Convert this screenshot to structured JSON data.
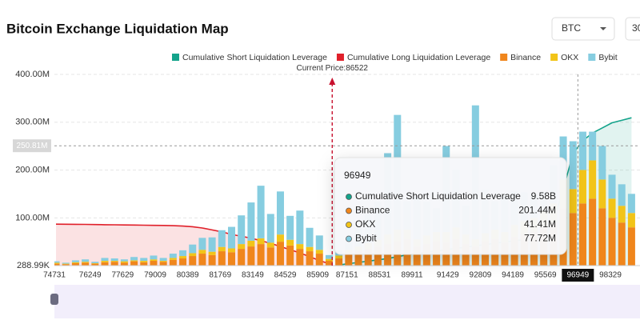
{
  "controls": {
    "symbol": "BTC",
    "period": "30"
  },
  "chart_data": {
    "type": "bar",
    "title": "Bitcoin Exchange Liquidation Map",
    "x": [
      74800,
      75214,
      75628,
      76042,
      76456,
      76870,
      77284,
      77698,
      78112,
      78526,
      78940,
      79354,
      79768,
      80182,
      80596,
      81010,
      81424,
      81838,
      82252,
      82666,
      83080,
      83494,
      83908,
      84322,
      84736,
      85150,
      85564,
      85978,
      86392,
      86806,
      87220,
      87634,
      88048,
      88462,
      88876,
      89290,
      89704,
      90118,
      90532,
      90946,
      91360,
      91774,
      92188,
      92602,
      93016,
      93430,
      93844,
      94258,
      94672,
      95086,
      95500,
      95914,
      96328,
      96742,
      97156,
      97570,
      97984,
      98398,
      98812,
      99226
    ],
    "xlim": [
      74731,
      99600
    ],
    "xticks": [
      74731,
      76249,
      77629,
      79009,
      80389,
      81769,
      83149,
      84529,
      85909,
      87151,
      88531,
      89911,
      91429,
      92809,
      94189,
      95569,
      96949,
      98329
    ],
    "ylim": [
      0.28899,
      400
    ],
    "yticks": [
      {
        "value": 0.28899,
        "label": "288.99K"
      },
      {
        "value": 100,
        "label": "100.00M"
      },
      {
        "value": 200,
        "label": "200.00M"
      },
      {
        "value": 300,
        "label": "300.00M"
      },
      {
        "value": 400,
        "label": "400.00M"
      }
    ],
    "y2lim": [
      0,
      15000
    ],
    "grid": true,
    "series": [
      {
        "name": "Cumulative Short Liquidation Leverage",
        "color": "#14a38b",
        "kind": "area",
        "axis": "y2",
        "values": [
          null,
          null,
          null,
          null,
          null,
          null,
          null,
          null,
          null,
          null,
          null,
          null,
          null,
          null,
          null,
          null,
          null,
          null,
          null,
          null,
          null,
          null,
          null,
          null,
          null,
          null,
          null,
          null,
          null,
          50,
          150,
          250,
          350,
          450,
          550,
          700,
          850,
          950,
          1050,
          1150,
          1250,
          1350,
          1450,
          1550,
          1650,
          1750,
          1850,
          1950,
          2050,
          2150,
          2300,
          3500,
          6000,
          8800,
          9800,
          10400,
          10800,
          11200,
          11400,
          11600
        ]
      },
      {
        "name": "Cumulative Long Liquidation Leverage",
        "color": "#e0202a",
        "kind": "area",
        "axis": "y2",
        "values": [
          3250,
          3245,
          3240,
          3230,
          3220,
          3210,
          3200,
          3190,
          3180,
          3170,
          3160,
          3150,
          3130,
          3100,
          3050,
          2950,
          2800,
          2650,
          2450,
          2300,
          2150,
          1950,
          1750,
          1500,
          1250,
          1000,
          700,
          400,
          150,
          null,
          null,
          null,
          null,
          null,
          null,
          null,
          null,
          null,
          null,
          null,
          null,
          null,
          null,
          null,
          null,
          null,
          null,
          null,
          null,
          null,
          null,
          null,
          null,
          null,
          null,
          null,
          null,
          null,
          null,
          null
        ]
      },
      {
        "name": "Binance",
        "color": "#f0861c",
        "kind": "bar",
        "values": [
          4,
          3,
          5,
          6,
          4,
          7,
          8,
          6,
          9,
          7,
          10,
          8,
          12,
          15,
          20,
          25,
          22,
          30,
          28,
          35,
          40,
          45,
          38,
          50,
          42,
          35,
          30,
          25,
          10,
          15,
          25,
          30,
          35,
          40,
          45,
          50,
          55,
          40,
          45,
          50,
          48,
          55,
          45,
          40,
          50,
          55,
          48,
          60,
          65,
          70,
          80,
          90,
          120,
          110,
          130,
          140,
          120,
          100,
          90,
          80
        ]
      },
      {
        "name": "OKX",
        "color": "#f2c418",
        "kind": "bar",
        "values": [
          2,
          1,
          2,
          2,
          1,
          3,
          2,
          3,
          2,
          3,
          3,
          2,
          4,
          5,
          6,
          8,
          7,
          9,
          8,
          10,
          12,
          12,
          10,
          15,
          12,
          10,
          9,
          8,
          4,
          6,
          8,
          10,
          12,
          14,
          20,
          25,
          20,
          15,
          18,
          20,
          22,
          25,
          20,
          15,
          18,
          20,
          22,
          25,
          28,
          30,
          35,
          40,
          60,
          50,
          70,
          80,
          60,
          40,
          35,
          30
        ]
      },
      {
        "name": "Bybit",
        "color": "#86cde0",
        "kind": "bar",
        "values": [
          3,
          2,
          4,
          5,
          3,
          6,
          5,
          4,
          7,
          6,
          8,
          6,
          9,
          12,
          18,
          25,
          30,
          35,
          45,
          60,
          80,
          110,
          60,
          90,
          50,
          70,
          40,
          30,
          8,
          10,
          20,
          40,
          60,
          80,
          170,
          240,
          60,
          90,
          70,
          50,
          180,
          120,
          60,
          280,
          90,
          60,
          80,
          70,
          60,
          50,
          40,
          80,
          90,
          100,
          80,
          60,
          70,
          50,
          45,
          40
        ]
      }
    ],
    "current_price": {
      "label": "Current Price:",
      "value": 86522
    },
    "crosshair": {
      "x": 96949,
      "y": {
        "value": 250.81,
        "label": "250.81M"
      }
    },
    "tooltip": {
      "x": 96949,
      "rows": [
        {
          "value": 9580,
          "label": "9.58B"
        },
        {
          "value": 201.44,
          "label": "201.44M"
        },
        {
          "value": 41.41,
          "label": "41.41M"
        },
        {
          "value": 77.72,
          "label": "77.72M"
        }
      ]
    }
  }
}
